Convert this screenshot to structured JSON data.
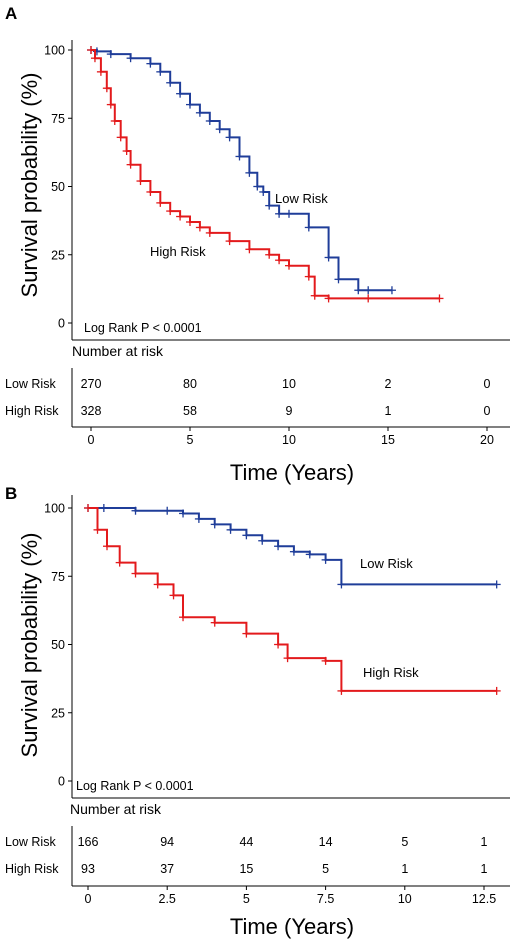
{
  "colors": {
    "low_risk": "#1f3d99",
    "high_risk": "#e31a1c",
    "axis": "#000000"
  },
  "chart_data": [
    {
      "panel": "A",
      "type": "line",
      "ylabel": "Survival probability (%)",
      "xlabel": "Time  (Years)",
      "xlim": [
        0,
        20
      ],
      "ylim": [
        0,
        100
      ],
      "x_ticks": [
        "0",
        "5",
        "10",
        "15",
        "20"
      ],
      "y_ticks": [
        "0",
        "25",
        "50",
        "75",
        "100"
      ],
      "grid": false,
      "annotation": "Log Rank P < 0.0001",
      "series": [
        {
          "name": "Low Risk",
          "color": "#1f3d99",
          "x": [
            0,
            0.3,
            1.0,
            2.0,
            3.0,
            3.5,
            4.0,
            4.5,
            5.0,
            5.5,
            6.0,
            6.5,
            7.0,
            7.5,
            8.0,
            8.4,
            8.7,
            9.0,
            9.5,
            10.0,
            11.0,
            12.0,
            12.5,
            13.5,
            14.0,
            15.2
          ],
          "y": [
            100,
            99.5,
            98.5,
            97,
            95,
            92,
            88,
            84,
            80,
            77,
            74,
            71,
            68,
            61,
            55,
            50,
            48,
            43,
            40,
            40,
            35,
            24,
            16,
            12,
            12,
            12
          ]
        },
        {
          "name": "High Risk",
          "color": "#e31a1c",
          "x": [
            0,
            0.2,
            0.5,
            0.8,
            1.0,
            1.2,
            1.5,
            1.8,
            2.0,
            2.5,
            3.0,
            3.5,
            4.0,
            4.5,
            5.0,
            5.5,
            6.0,
            7.0,
            8.0,
            9.0,
            9.5,
            10.0,
            11.0,
            11.3,
            12.0,
            14.0,
            17.6
          ],
          "y": [
            100,
            97,
            92,
            86,
            80,
            74,
            68,
            63,
            58,
            52,
            48,
            44,
            41,
            39,
            37,
            35,
            33,
            30,
            27,
            25,
            23,
            21,
            17,
            10,
            9,
            9,
            9
          ]
        }
      ],
      "curve_labels": [
        "Low Risk",
        "High Risk"
      ],
      "risk_table": {
        "title": "Number at risk",
        "rows": [
          {
            "name": "Low Risk",
            "values": [
              "270",
              "80",
              "10",
              "2",
              "0"
            ]
          },
          {
            "name": "High Risk",
            "values": [
              "328",
              "58",
              "9",
              "1",
              "0"
            ]
          }
        ]
      }
    },
    {
      "panel": "B",
      "type": "line",
      "ylabel": "Survival probability (%)",
      "xlabel": "Time  (Years)",
      "xlim": [
        0,
        12.5
      ],
      "ylim": [
        0,
        100
      ],
      "x_ticks": [
        "0",
        "2.5",
        "5",
        "7.5",
        "10",
        "12.5"
      ],
      "y_ticks": [
        "0",
        "25",
        "50",
        "75",
        "100"
      ],
      "grid": false,
      "annotation": "Log Rank P < 0.0001",
      "series": [
        {
          "name": "Low Risk",
          "color": "#1f3d99",
          "x": [
            0,
            0.5,
            1.5,
            2.5,
            3.0,
            3.5,
            4.0,
            4.5,
            5.0,
            5.5,
            6.0,
            6.5,
            7.0,
            7.5,
            8.0,
            12.9
          ],
          "y": [
            100,
            100,
            99,
            99,
            98,
            96,
            94,
            92,
            90,
            88,
            86,
            84,
            83,
            81,
            72,
            72
          ]
        },
        {
          "name": "High Risk",
          "color": "#e31a1c",
          "x": [
            0,
            0.3,
            0.6,
            1.0,
            1.5,
            2.2,
            2.7,
            3.0,
            4.0,
            5.0,
            6.0,
            6.3,
            7.5,
            8.0,
            12.9
          ],
          "y": [
            100,
            92,
            86,
            80,
            76,
            72,
            68,
            60,
            58,
            54,
            50,
            45,
            44,
            33,
            33
          ]
        }
      ],
      "curve_labels": [
        "Low Risk",
        "High Risk"
      ],
      "risk_table": {
        "title": "Number at risk",
        "rows": [
          {
            "name": "Low Risk",
            "values": [
              "166",
              "94",
              "44",
              "14",
              "5",
              "1"
            ]
          },
          {
            "name": "High Risk",
            "values": [
              "93",
              "37",
              "15",
              "5",
              "1",
              "1"
            ]
          }
        ]
      }
    }
  ]
}
